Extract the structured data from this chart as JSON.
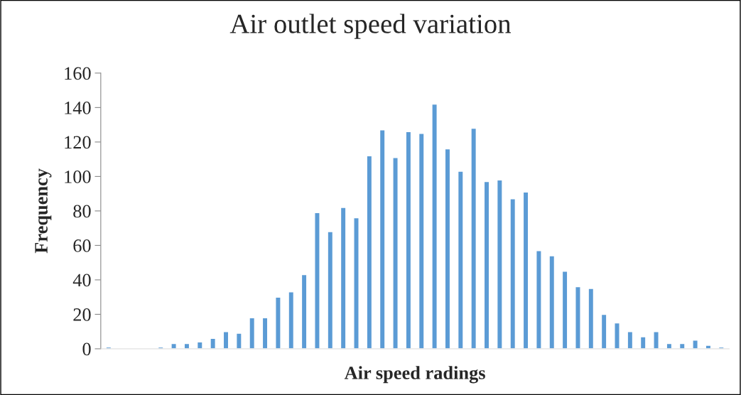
{
  "chart_data": {
    "type": "bar",
    "title": "Air outlet speed variation",
    "xlabel": "Air speed radings",
    "ylabel": "Frequency",
    "categories": [
      null,
      null,
      null,
      null,
      null,
      null,
      null,
      null,
      null,
      null,
      null,
      null,
      null,
      null,
      null,
      null,
      null,
      null,
      null,
      null,
      null,
      null,
      null,
      null,
      null,
      null,
      null,
      null,
      null,
      null,
      null,
      null,
      null,
      null,
      null,
      null,
      null,
      null,
      null,
      null,
      null,
      null,
      null,
      null,
      null,
      null,
      null,
      null
    ],
    "values": [
      1,
      null,
      null,
      null,
      1,
      3,
      3,
      4,
      6,
      10,
      9,
      18,
      18,
      30,
      33,
      43,
      79,
      68,
      82,
      76,
      112,
      127,
      111,
      126,
      125,
      142,
      116,
      103,
      128,
      97,
      98,
      87,
      91,
      57,
      54,
      45,
      36,
      35,
      20,
      15,
      10,
      7,
      10,
      3,
      3,
      5,
      2,
      1
    ],
    "color": "#5b9bd5",
    "ylim": [
      0,
      160
    ],
    "yticks": [
      0,
      20,
      40,
      60,
      80,
      100,
      120,
      140,
      160
    ],
    "grid": false,
    "legend": false
  }
}
